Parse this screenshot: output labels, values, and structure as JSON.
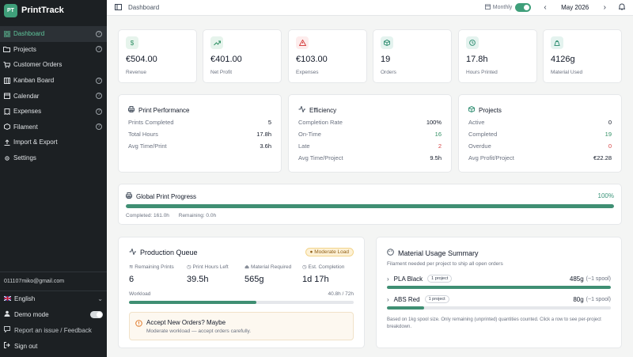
{
  "app": {
    "logo_text": "PT",
    "name": "PrintTrack"
  },
  "sidebar": {
    "items": [
      {
        "label": "Dashboard",
        "active": true,
        "help": true
      },
      {
        "label": "Projects",
        "help": true
      },
      {
        "label": "Customer Orders",
        "help": false
      },
      {
        "label": "Kanban Board",
        "help": true
      },
      {
        "label": "Calendar",
        "help": true
      },
      {
        "label": "Expenses",
        "help": true
      },
      {
        "label": "Filament",
        "help": true
      },
      {
        "label": "Import & Export",
        "help": false
      },
      {
        "label": "Settings",
        "help": false
      }
    ],
    "email": "011107miko@gmail.com",
    "language": "English",
    "demo_mode": "Demo mode",
    "report": "Report an issue / Feedback",
    "sign_out": "Sign out"
  },
  "topbar": {
    "breadcrumb": "Dashboard",
    "period_label": "Monthly",
    "month": "May 2026"
  },
  "stats": [
    {
      "value": "€504.00",
      "label": "Revenue",
      "icon": "dollar-icon"
    },
    {
      "value": "€401.00",
      "label": "Net Profit",
      "icon": "trend-up-icon"
    },
    {
      "value": "€103.00",
      "label": "Expenses",
      "icon": "warning-icon"
    },
    {
      "value": "19",
      "label": "Orders",
      "icon": "box-icon"
    },
    {
      "value": "17.8h",
      "label": "Hours Printed",
      "icon": "clock-icon"
    },
    {
      "value": "4126g",
      "label": "Material Used",
      "icon": "weight-icon"
    }
  ],
  "print_performance": {
    "title": "Print Performance",
    "rows": [
      {
        "label": "Prints Completed",
        "value": "5"
      },
      {
        "label": "Total Hours",
        "value": "17.8h"
      },
      {
        "label": "Avg Time/Print",
        "value": "3.6h"
      }
    ]
  },
  "efficiency": {
    "title": "Efficiency",
    "rows": [
      {
        "label": "Completion Rate",
        "value": "100%"
      },
      {
        "label": "On-Time",
        "value": "16"
      },
      {
        "label": "Late",
        "value": "2"
      },
      {
        "label": "Avg Time/Project",
        "value": "9.5h"
      }
    ]
  },
  "projects": {
    "title": "Projects",
    "rows": [
      {
        "label": "Active",
        "value": "0"
      },
      {
        "label": "Completed",
        "value": "19"
      },
      {
        "label": "Overdue",
        "value": "0"
      },
      {
        "label": "Avg Profit/Project",
        "value": "€22.28"
      }
    ]
  },
  "global_progress": {
    "title": "Global Print Progress",
    "percent_label": "100%",
    "progress": 1.0,
    "completed": "Completed: 161.0h",
    "remaining": "Remaining: 0.0h"
  },
  "production_queue": {
    "title": "Production Queue",
    "badge": "Moderate Load",
    "stats": [
      {
        "label": "Remaining Prints",
        "value": "6"
      },
      {
        "label": "Print Hours Left",
        "value": "39.5h"
      },
      {
        "label": "Material Required",
        "value": "565g"
      },
      {
        "label": "Est. Completion",
        "value": "1d 17h"
      }
    ],
    "workload_label": "Workload",
    "workload_value": "40.8h / 72h",
    "workload_fraction": 0.567,
    "accept_title": "Accept New Orders? Maybe",
    "accept_sub": "Moderate workload — accept orders carefully."
  },
  "material_usage": {
    "title": "Material Usage Summary",
    "subtitle": "Filament needed per project to ship all open orders",
    "rows": [
      {
        "name": "PLA Black",
        "badge": "1 project",
        "amount": "485g",
        "spool": "(~1 spool)",
        "fraction": 1.0
      },
      {
        "name": "ABS Red",
        "badge": "1 project",
        "amount": "80g",
        "spool": "(~1 spool)",
        "fraction": 0.165
      }
    ],
    "note": "Based on 1kg spool size. Only remaining (unprinted) quantities counted. Click a row to see per-project breakdown."
  },
  "colors": {
    "accent": "#3f9f7a",
    "sidebar": "#1c2023",
    "danger": "#d64545",
    "success": "#2f8f63"
  }
}
